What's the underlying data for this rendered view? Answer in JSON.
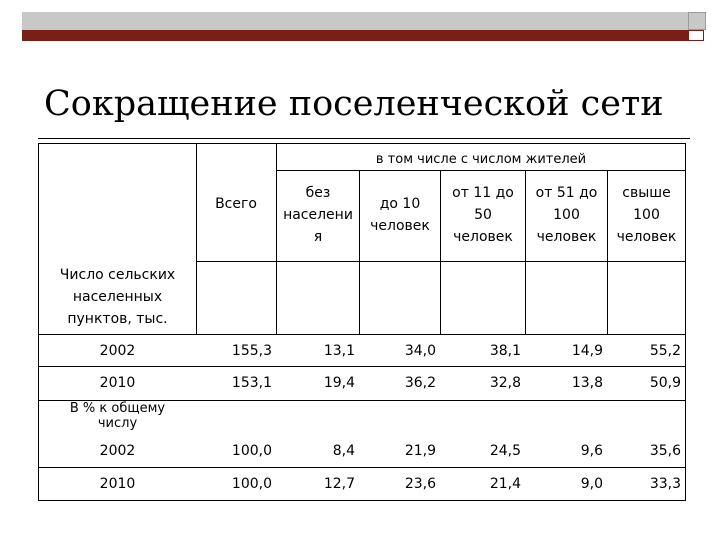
{
  "slide": {
    "title": "Сокращение поселенческой сети"
  },
  "table": {
    "group_header": "в том числе с числом  жителей",
    "col_total": "Всего",
    "cols": [
      [
        "без",
        "населени",
        "я"
      ],
      [
        "до 10",
        "человек"
      ],
      [
        "от 11 до",
        "50",
        "человек"
      ],
      [
        "от 51 до",
        "100",
        "человек"
      ],
      [
        "свыше",
        "100",
        "человек"
      ]
    ],
    "section1_label": [
      "Число сельских",
      "населенных",
      "пунктов, тыс."
    ],
    "section2_label": [
      "В % к общему",
      "числу"
    ],
    "rows": [
      {
        "year": "2002",
        "total": "155,3",
        "values": [
          "13,1",
          "34,0",
          "38,1",
          "14,9",
          "55,2"
        ]
      },
      {
        "year": "2010",
        "total": "153,1",
        "values": [
          "19,4",
          "36,2",
          "32,8",
          "13,8",
          "50,9"
        ]
      },
      {
        "year": "2002",
        "total": "100,0",
        "values": [
          "8,4",
          "21,9",
          "24,5",
          "9,6",
          "35,6"
        ]
      },
      {
        "year": "2010",
        "total": "100,0",
        "values": [
          "12,7",
          "23,6",
          "21,4",
          "9,0",
          "33,3"
        ]
      }
    ]
  }
}
